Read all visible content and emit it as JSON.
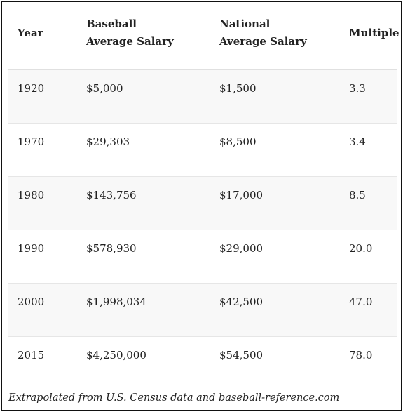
{
  "table": {
    "headers": {
      "year": "Year",
      "baseball_line1": "Baseball",
      "baseball_line2": "Average Salary",
      "national_line1": "National",
      "national_line2": "Average Salary",
      "multiple": "Multiple"
    },
    "rows": [
      {
        "year": "1920",
        "baseball": "$5,000",
        "national": "$1,500",
        "multiple": "3.3"
      },
      {
        "year": "1970",
        "baseball": "$29,303",
        "national": "$8,500",
        "multiple": "3.4"
      },
      {
        "year": "1980",
        "baseball": "$143,756",
        "national": "$17,000",
        "multiple": "8.5"
      },
      {
        "year": "1990",
        "baseball": "$578,930",
        "national": "$29,000",
        "multiple": "20.0"
      },
      {
        "year": "2000",
        "baseball": "$1,998,034",
        "national": "$42,500",
        "multiple": "47.0"
      },
      {
        "year": "2015",
        "baseball": "$4,250,000",
        "national": "$54,500",
        "multiple": "78.0"
      }
    ]
  },
  "caption": "Extrapolated from U.S. Census data and baseball-reference.com",
  "colors": {
    "border": "#111111",
    "row_shade": "#f8f8f8",
    "rule": "#e6e6e6",
    "text": "#222222"
  }
}
